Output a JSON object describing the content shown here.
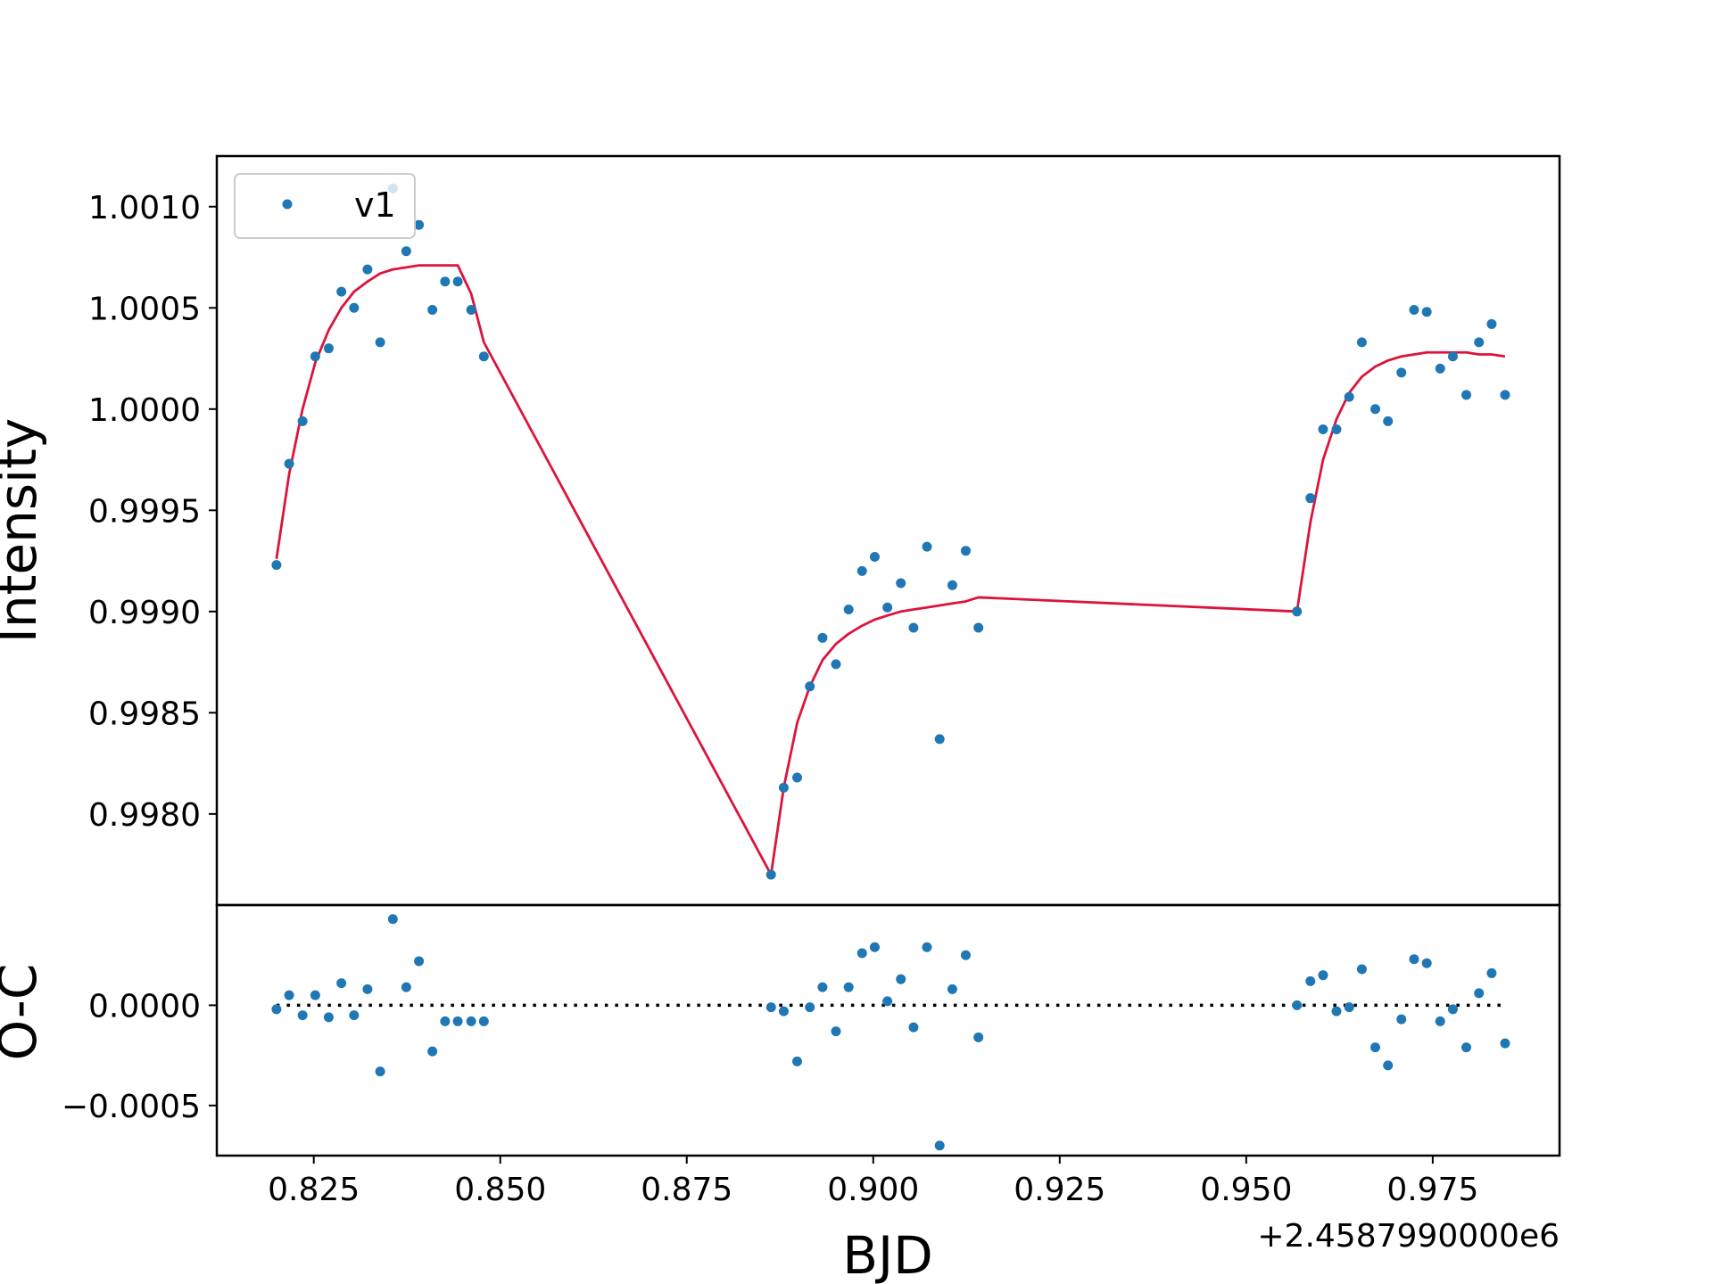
{
  "colors": {
    "data": "#1f77b4",
    "model": "#dc143c",
    "residual_zero": "#000000"
  },
  "chart_data": [
    {
      "type": "scatter",
      "panel": "main",
      "ylabel": "Intensity",
      "xlim": [
        0.812,
        0.992
      ],
      "ylim": [
        0.99755,
        1.00125
      ],
      "x_offset_label": "+2.4587990000e6",
      "x_ticks": [
        0.825,
        0.85,
        0.875,
        0.9,
        0.925,
        0.95,
        0.975
      ],
      "x_tick_labels": [
        "0.825",
        "0.850",
        "0.875",
        "0.900",
        "0.925",
        "0.950",
        "0.975"
      ],
      "y_ticks": [
        0.998,
        0.9985,
        0.999,
        0.9995,
        1.0,
        1.0005,
        1.001
      ],
      "y_tick_labels": [
        "0.9980",
        "0.9985",
        "0.9990",
        "0.9995",
        "1.0000",
        "1.0005",
        "1.0010"
      ],
      "legend": {
        "placement": "upper-left",
        "entries": [
          "v1"
        ]
      },
      "grid": false,
      "series": [
        {
          "name": "v1",
          "type": "scatter",
          "points": [
            [
              0.82,
              0.99923
            ],
            [
              0.8217,
              0.99973
            ],
            [
              0.8235,
              0.99994
            ],
            [
              0.8252,
              1.00026
            ],
            [
              0.827,
              1.0003
            ],
            [
              0.8287,
              1.00058
            ],
            [
              0.8304,
              1.0005
            ],
            [
              0.8322,
              1.00069
            ],
            [
              0.8339,
              1.00033
            ],
            [
              0.8356,
              1.00109
            ],
            [
              0.8374,
              1.00078
            ],
            [
              0.8391,
              1.00091
            ],
            [
              0.8409,
              1.00049
            ],
            [
              0.8426,
              1.00063
            ],
            [
              0.8443,
              1.00063
            ],
            [
              0.8461,
              1.00049
            ],
            [
              0.8478,
              1.00026
            ],
            [
              0.8863,
              0.9977
            ],
            [
              0.888,
              0.99813
            ],
            [
              0.8898,
              0.99818
            ],
            [
              0.8915,
              0.99863
            ],
            [
              0.8932,
              0.99887
            ],
            [
              0.895,
              0.99874
            ],
            [
              0.8967,
              0.99901
            ],
            [
              0.8985,
              0.9992
            ],
            [
              0.9002,
              0.99927
            ],
            [
              0.9019,
              0.99902
            ],
            [
              0.9037,
              0.99914
            ],
            [
              0.9054,
              0.99892
            ],
            [
              0.9072,
              0.99932
            ],
            [
              0.9089,
              0.99837
            ],
            [
              0.9106,
              0.99913
            ],
            [
              0.9124,
              0.9993
            ],
            [
              0.9141,
              0.99892
            ],
            [
              0.9568,
              0.999
            ],
            [
              0.9586,
              0.99956
            ],
            [
              0.9603,
              0.9999
            ],
            [
              0.9621,
              0.9999
            ],
            [
              0.9638,
              1.00006
            ],
            [
              0.9655,
              1.00033
            ],
            [
              0.9673,
              1.0
            ],
            [
              0.969,
              0.99994
            ],
            [
              0.9708,
              1.00018
            ],
            [
              0.9725,
              1.00049
            ],
            [
              0.9742,
              1.00048
            ],
            [
              0.976,
              1.0002
            ],
            [
              0.9777,
              1.00026
            ],
            [
              0.9795,
              1.00007
            ],
            [
              0.9812,
              1.00033
            ],
            [
              0.9829,
              1.00042
            ],
            [
              0.9847,
              1.00007
            ]
          ]
        },
        {
          "name": "model",
          "type": "line",
          "points": [
            [
              0.82,
              0.99926
            ],
            [
              0.8217,
              0.99968
            ],
            [
              0.8235,
              1.0
            ],
            [
              0.8252,
              1.00023
            ],
            [
              0.827,
              1.00039
            ],
            [
              0.8287,
              1.0005
            ],
            [
              0.8304,
              1.00058
            ],
            [
              0.8322,
              1.00063
            ],
            [
              0.8339,
              1.00067
            ],
            [
              0.8356,
              1.00069
            ],
            [
              0.8374,
              1.0007
            ],
            [
              0.8391,
              1.00071
            ],
            [
              0.8409,
              1.00071
            ],
            [
              0.8443,
              1.00071
            ],
            [
              0.8461,
              1.00057
            ],
            [
              0.8478,
              1.00033
            ],
            [
              0.8863,
              0.9977
            ],
            [
              0.888,
              0.99813
            ],
            [
              0.8898,
              0.99845
            ],
            [
              0.8915,
              0.99863
            ],
            [
              0.8932,
              0.99876
            ],
            [
              0.895,
              0.99884
            ],
            [
              0.8967,
              0.99889
            ],
            [
              0.8985,
              0.99893
            ],
            [
              0.9002,
              0.99896
            ],
            [
              0.9019,
              0.99898
            ],
            [
              0.9037,
              0.999
            ],
            [
              0.9054,
              0.99901
            ],
            [
              0.9072,
              0.99902
            ],
            [
              0.9089,
              0.99903
            ],
            [
              0.9106,
              0.99904
            ],
            [
              0.9124,
              0.99905
            ],
            [
              0.9141,
              0.99907
            ],
            [
              0.9568,
              0.999
            ],
            [
              0.9586,
              0.99944
            ],
            [
              0.9603,
              0.99975
            ],
            [
              0.9621,
              0.99995
            ],
            [
              0.9638,
              1.00008
            ],
            [
              0.9655,
              1.00016
            ],
            [
              0.9673,
              1.00021
            ],
            [
              0.969,
              1.00024
            ],
            [
              0.9708,
              1.00026
            ],
            [
              0.9725,
              1.00027
            ],
            [
              0.9742,
              1.00028
            ],
            [
              0.976,
              1.00028
            ],
            [
              0.9777,
              1.00028
            ],
            [
              0.9795,
              1.00028
            ],
            [
              0.9812,
              1.00027
            ],
            [
              0.9829,
              1.00027
            ],
            [
              0.9847,
              1.00026
            ]
          ]
        }
      ]
    },
    {
      "type": "scatter",
      "panel": "residuals",
      "xlabel": "BJD",
      "ylabel": "O-C",
      "xlim": [
        0.812,
        0.992
      ],
      "ylim": [
        -0.00075,
        0.0005
      ],
      "x_ticks": [
        0.825,
        0.85,
        0.875,
        0.9,
        0.925,
        0.95,
        0.975
      ],
      "x_tick_labels": [
        "0.825",
        "0.850",
        "0.875",
        "0.900",
        "0.925",
        "0.950",
        "0.975"
      ],
      "y_ticks": [
        -0.0005,
        0.0
      ],
      "y_tick_labels": [
        "−0.0005",
        "0.0000"
      ],
      "grid": false,
      "zero_line": {
        "style": "dotted",
        "from": 0.82,
        "to": 0.9847,
        "y": 0.0
      },
      "series": [
        {
          "type": "scatter",
          "points": [
            [
              0.82,
              -2e-05
            ],
            [
              0.8217,
              5e-05
            ],
            [
              0.8235,
              -5e-05
            ],
            [
              0.8252,
              5e-05
            ],
            [
              0.827,
              -6e-05
            ],
            [
              0.8287,
              0.00011
            ],
            [
              0.8304,
              -5e-05
            ],
            [
              0.8322,
              8e-05
            ],
            [
              0.8339,
              -0.00033
            ],
            [
              0.8356,
              0.00043
            ],
            [
              0.8374,
              9e-05
            ],
            [
              0.8391,
              0.00022
            ],
            [
              0.8409,
              -0.00023
            ],
            [
              0.8426,
              -8e-05
            ],
            [
              0.8443,
              -8e-05
            ],
            [
              0.8461,
              -8e-05
            ],
            [
              0.8478,
              -8e-05
            ],
            [
              0.8863,
              -1e-05
            ],
            [
              0.888,
              -3e-05
            ],
            [
              0.8898,
              -0.00028
            ],
            [
              0.8915,
              -1e-05
            ],
            [
              0.8932,
              9e-05
            ],
            [
              0.895,
              -0.00013
            ],
            [
              0.8967,
              9e-05
            ],
            [
              0.8985,
              0.00026
            ],
            [
              0.9002,
              0.00029
            ],
            [
              0.9019,
              2e-05
            ],
            [
              0.9037,
              0.00013
            ],
            [
              0.9054,
              -0.00011
            ],
            [
              0.9072,
              0.00029
            ],
            [
              0.9089,
              -0.0007
            ],
            [
              0.9106,
              8e-05
            ],
            [
              0.9124,
              0.00025
            ],
            [
              0.9141,
              -0.00016
            ],
            [
              0.9568,
              0.0
            ],
            [
              0.9586,
              0.00012
            ],
            [
              0.9603,
              0.00015
            ],
            [
              0.9621,
              -3e-05
            ],
            [
              0.9638,
              -1e-05
            ],
            [
              0.9655,
              0.00018
            ],
            [
              0.9673,
              -0.00021
            ],
            [
              0.969,
              -0.0003
            ],
            [
              0.9708,
              -7e-05
            ],
            [
              0.9725,
              0.00023
            ],
            [
              0.9742,
              0.00021
            ],
            [
              0.976,
              -8e-05
            ],
            [
              0.9777,
              -2e-05
            ],
            [
              0.9795,
              -0.00021
            ],
            [
              0.9812,
              6e-05
            ],
            [
              0.9829,
              0.00016
            ],
            [
              0.9847,
              -0.00019
            ]
          ]
        }
      ]
    }
  ]
}
